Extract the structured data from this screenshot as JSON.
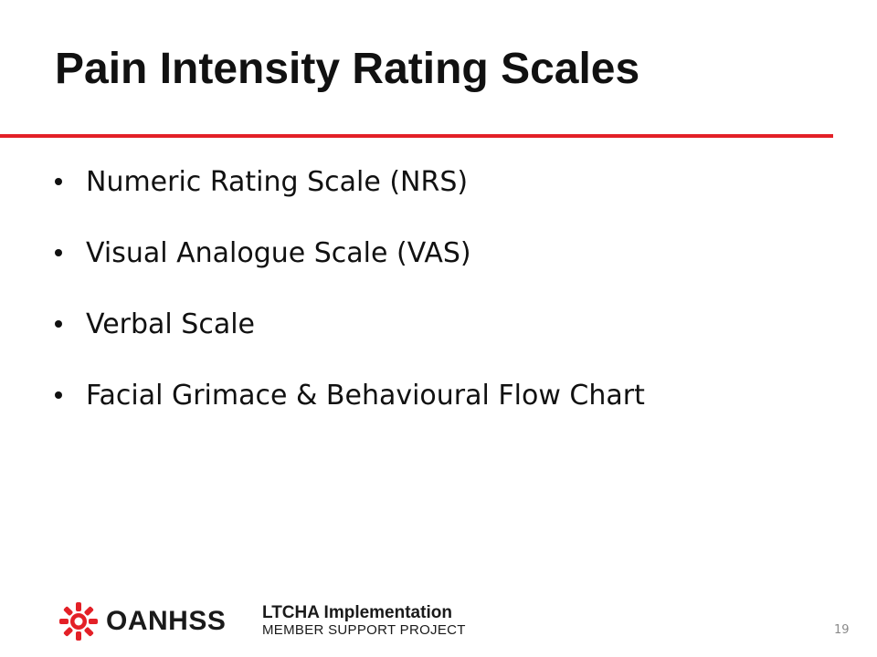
{
  "slide": {
    "title": "Pain Intensity Rating Scales",
    "bullets": [
      "Numeric Rating Scale (NRS)",
      "Visual Analogue Scale (VAS)",
      "Verbal Scale",
      "Facial Grimace & Behavioural Flow Chart"
    ],
    "page_number": "19"
  },
  "footer": {
    "org_logo_text": "OANHSS",
    "project_title": "LTCHA Implementation",
    "project_subtitle": "MEMBER SUPPORT PROJECT"
  },
  "colors": {
    "accent": "#e32027",
    "text": "#111111"
  },
  "icons": {
    "org_logo": "oanhss-logo-icon"
  }
}
